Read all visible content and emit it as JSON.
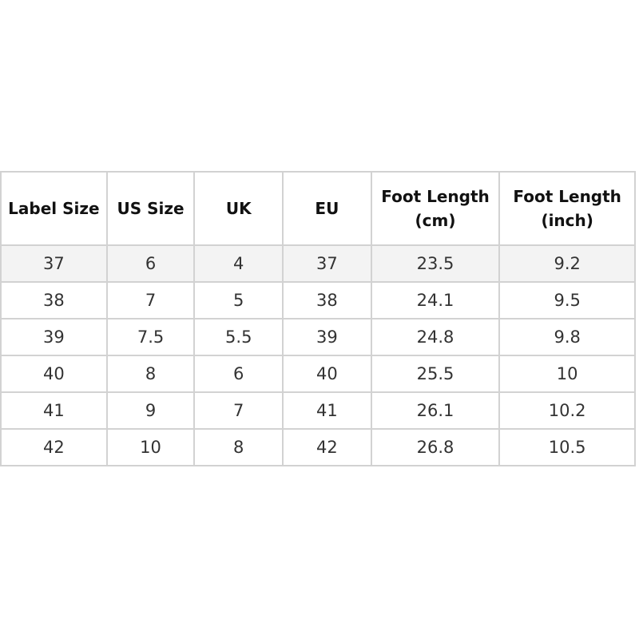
{
  "headers": [
    "Label Size",
    "US Size",
    "UK",
    "EU",
    "Foot Length (cm)",
    "Foot Length (inch)"
  ],
  "rows": [
    [
      "37",
      "6",
      "4",
      "37",
      "23.5",
      "9.2"
    ],
    [
      "38",
      "7",
      "5",
      "38",
      "24.1",
      "9.5"
    ],
    [
      "39",
      "7.5",
      "5.5",
      "39",
      "24.8",
      "9.8"
    ],
    [
      "40",
      "8",
      "6",
      "40",
      "25.5",
      "10"
    ],
    [
      "41",
      "9",
      "7",
      "41",
      "26.1",
      "10.2"
    ],
    [
      "42",
      "10",
      "8",
      "42",
      "26.8",
      "10.5"
    ]
  ]
}
